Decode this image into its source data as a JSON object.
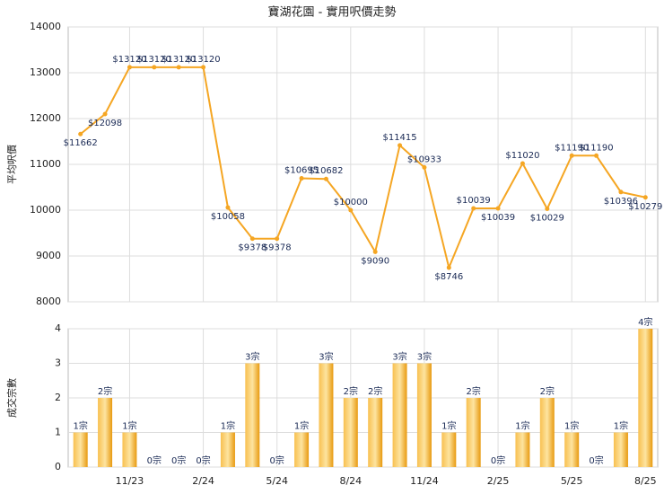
{
  "chart_data": [
    {
      "type": "line",
      "title": "寶湖花園 - 實用呎價走勢",
      "ylabel": "平均呎價",
      "color": "#f5a623",
      "values": [
        11662,
        12098,
        13120,
        13120,
        13120,
        13120,
        10058,
        9378,
        9378,
        10695,
        10682,
        10000,
        9090,
        11415,
        10933,
        8746,
        10039,
        10039,
        11020,
        10029,
        11190,
        11190,
        10396,
        10279
      ],
      "value_labels": [
        "$11662",
        "$12098",
        "$13120",
        "$13120",
        "$13120",
        "$13120",
        "$10058",
        "$9378",
        "$9378",
        "$10695",
        "$10682",
        "$10000",
        "$9090",
        "$11415",
        "$10933",
        "$8746",
        "$10039",
        "$10039",
        "$11020",
        "$10029",
        "$11190",
        "$11190",
        "$10396",
        "$10279"
      ],
      "ylim": [
        8000,
        14000
      ],
      "yticks": [
        8000,
        9000,
        10000,
        11000,
        12000,
        13000,
        14000
      ],
      "grid": true
    },
    {
      "type": "bar",
      "ylabel": "成交宗數",
      "color": "#f5a623",
      "categories": [
        null,
        null,
        "11/23",
        null,
        null,
        "2/24",
        null,
        null,
        "5/24",
        null,
        null,
        "8/24",
        null,
        null,
        "11/24",
        null,
        null,
        "2/25",
        null,
        null,
        "5/25",
        null,
        null,
        "8/25"
      ],
      "values": [
        1,
        2,
        1,
        0,
        0,
        0,
        1,
        3,
        0,
        1,
        3,
        2,
        2,
        3,
        3,
        1,
        2,
        0,
        1,
        2,
        1,
        0,
        1,
        4
      ],
      "value_labels": [
        "1宗",
        "2宗",
        "1宗",
        "0宗",
        "0宗",
        "0宗",
        "1宗",
        "3宗",
        "0宗",
        "1宗",
        "3宗",
        "2宗",
        "2宗",
        "3宗",
        "3宗",
        "1宗",
        "2宗",
        "0宗",
        "1宗",
        "2宗",
        "1宗",
        "0宗",
        "1宗",
        "4宗"
      ],
      "ylim": [
        0,
        4
      ],
      "yticks": [
        0,
        1,
        2,
        3,
        4
      ],
      "grid": true
    }
  ]
}
